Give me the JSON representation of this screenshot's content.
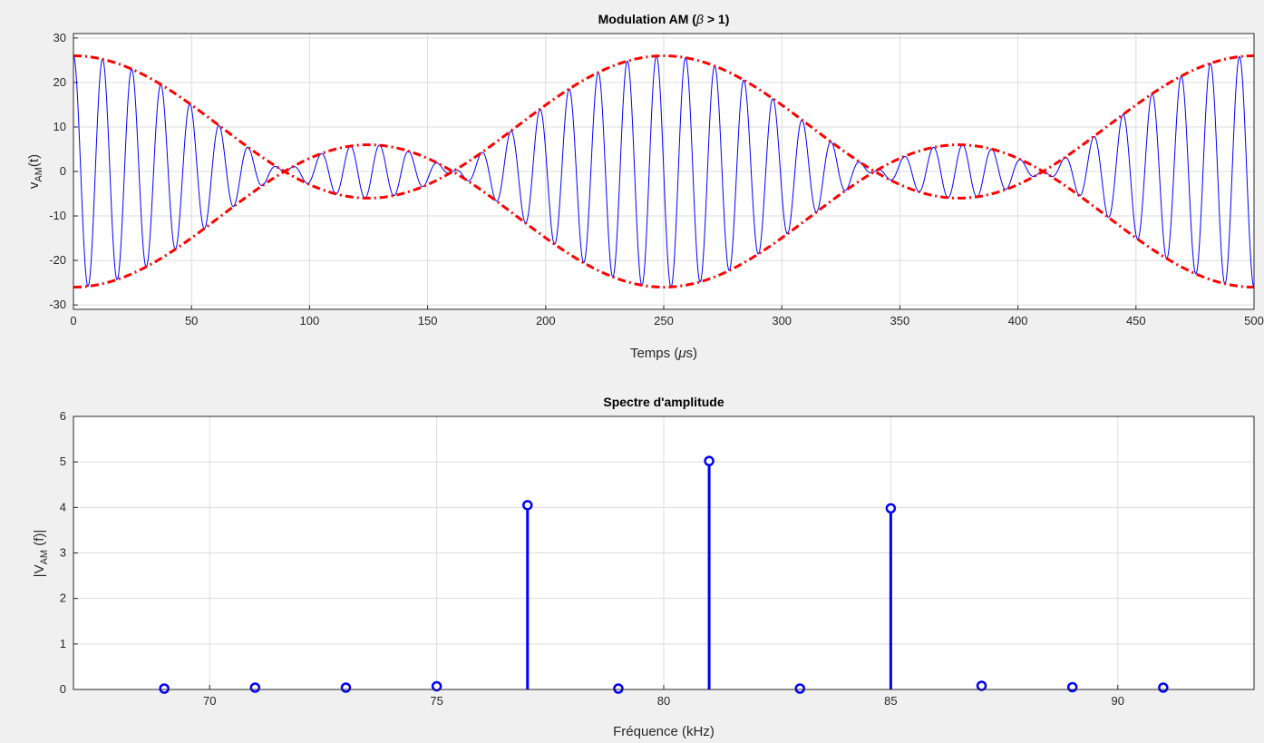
{
  "chart_data": [
    {
      "type": "line",
      "title": {
        "main": "Modulation AM (",
        "greek": "β",
        "rest": " > 1)"
      },
      "xlabel": {
        "main": "Temps (",
        "greek": "μ",
        "rest": "s)"
      },
      "ylabel": {
        "main": "v",
        "sub": "AM",
        "rest": "(t)"
      },
      "xlim": [
        0,
        500
      ],
      "ylim": [
        -31,
        31
      ],
      "xticks": [
        0,
        50,
        100,
        150,
        200,
        250,
        300,
        350,
        400,
        450,
        500
      ],
      "yticks": [
        -30,
        -20,
        -10,
        0,
        10,
        20,
        30
      ],
      "grid": true,
      "signal": {
        "carrier_frequency_khz": 81,
        "carrier_amplitude": 10,
        "envelope_terms": [
          {
            "frequency_khz": 0,
            "amplitude": 10
          },
          {
            "frequency_khz": 4,
            "amplitude": 16
          }
        ],
        "color": "#0000ff"
      },
      "series": [
        {
          "role": "envelope-upper",
          "color": "#ff0000",
          "style": "dash-dot"
        },
        {
          "role": "envelope-lower",
          "color": "#ff0000",
          "style": "dash-dot"
        }
      ]
    },
    {
      "type": "stem",
      "title": "Spectre d'amplitude",
      "xlabel": "Fréquence (kHz)",
      "ylabel": {
        "main": "|V",
        "sub": "AM",
        "rest": " (f)|"
      },
      "xlim": [
        67,
        93
      ],
      "ylim": [
        0,
        6
      ],
      "xticks": [
        70,
        75,
        80,
        85,
        90
      ],
      "yticks": [
        0,
        1,
        2,
        3,
        4,
        5,
        6
      ],
      "grid": true,
      "color": "#0000ff",
      "x": [
        69,
        71,
        73,
        75,
        77,
        79,
        81,
        83,
        85,
        87,
        89,
        91
      ],
      "values": [
        0.02,
        0.04,
        0.04,
        0.07,
        4.05,
        0.02,
        5.02,
        0.02,
        3.98,
        0.08,
        0.05,
        0.04
      ]
    }
  ]
}
